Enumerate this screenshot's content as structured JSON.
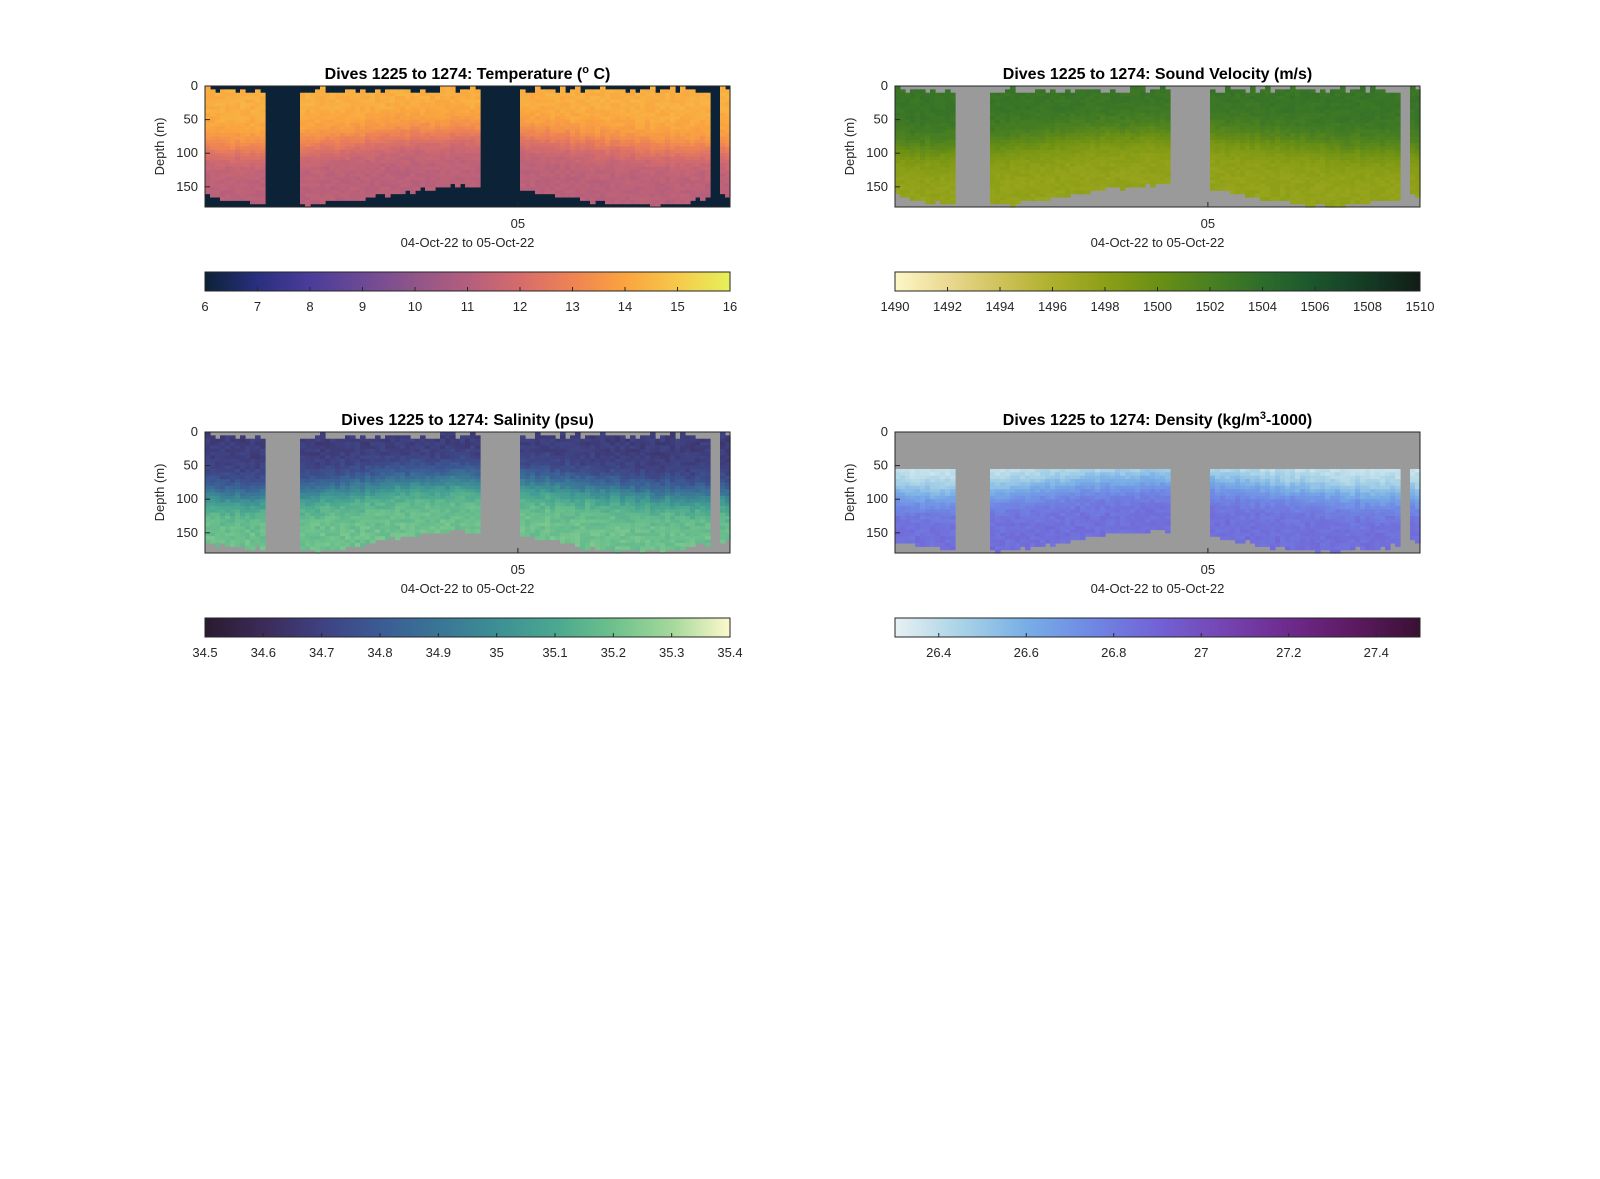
{
  "chart_data": [
    {
      "type": "heatmap",
      "title": "Dives 1225 to 1274: Temperature",
      "title_unit": "C",
      "title_unit_prefix": "(",
      "title_unit_sup": "o",
      "title_unit_suffix": ")",
      "ylabel": "Depth (m)",
      "xlabel": "04-Oct-22 to 05-Oct-22",
      "x_tick": "05",
      "y_ticks": [
        "0",
        "50",
        "100",
        "150"
      ],
      "ylim": [
        180,
        0
      ],
      "nodata_color": "#0c2237",
      "colorbar": {
        "ticks": [
          "6",
          "7",
          "8",
          "9",
          "10",
          "11",
          "12",
          "13",
          "14",
          "15",
          "16"
        ],
        "range": [
          6,
          16
        ],
        "colors": [
          "#0c2237",
          "#2a2f7f",
          "#4a3d99",
          "#6d4995",
          "#905589",
          "#b35e7e",
          "#d56c6c",
          "#ee8354",
          "#faa43f",
          "#f6c94a",
          "#e6f15a"
        ]
      },
      "gaps": [
        [
          0.118,
          0.18
        ],
        [
          0.52,
          0.598
        ],
        [
          0.96,
          0.98
        ]
      ],
      "surface_temp": 14.3,
      "bottom_temp": 11.2
    },
    {
      "type": "heatmap",
      "title": "Dives 1225 to 1274: Sound Velocity (m/s)",
      "ylabel": "Depth (m)",
      "xlabel": "04-Oct-22 to 05-Oct-22",
      "x_tick": "05",
      "y_ticks": [
        "0",
        "50",
        "100",
        "150"
      ],
      "ylim": [
        180,
        0
      ],
      "nodata_color": "#9a9a9a",
      "colorbar": {
        "ticks": [
          "1490",
          "1492",
          "1494",
          "1496",
          "1498",
          "1500",
          "1502",
          "1504",
          "1506",
          "1508",
          "1510"
        ],
        "range": [
          1490,
          1510
        ],
        "colors": [
          "#fdf7c8",
          "#ead991",
          "#cfc25a",
          "#aeb02c",
          "#8c9f16",
          "#6b9014",
          "#4a8021",
          "#2d6d2b",
          "#1b552c",
          "#143b24",
          "#111c16"
        ]
      },
      "gaps": [
        [
          0.118,
          0.18
        ],
        [
          0.52,
          0.598
        ],
        [
          0.96,
          0.98
        ]
      ],
      "surface_val": 1503.2,
      "bottom_val": 1497.6
    },
    {
      "type": "heatmap",
      "title": "Dives 1225 to 1274: Salinity (psu)",
      "ylabel": "Depth (m)",
      "xlabel": "04-Oct-22 to 05-Oct-22",
      "x_tick": "05",
      "y_ticks": [
        "0",
        "50",
        "100",
        "150"
      ],
      "ylim": [
        180,
        0
      ],
      "nodata_color": "#9a9a9a",
      "colorbar": {
        "ticks": [
          "34.5",
          "34.6",
          "34.7",
          "34.8",
          "34.9",
          "35",
          "35.1",
          "35.2",
          "35.3",
          "35.4"
        ],
        "range": [
          34.5,
          35.4
        ],
        "colors": [
          "#2a1a2f",
          "#3b2b58",
          "#3f4182",
          "#3b5b95",
          "#3a7596",
          "#3d8f94",
          "#4aa890",
          "#6ec18c",
          "#a4d89a",
          "#fdf9cc"
        ]
      },
      "gaps": [
        [
          0.118,
          0.18
        ],
        [
          0.52,
          0.598
        ],
        [
          0.96,
          0.98
        ]
      ],
      "surface_val": 34.68,
      "bottom_val": 35.2
    },
    {
      "type": "heatmap",
      "title": "Dives 1225 to 1274: Density",
      "title_unit_prefix": "(kg/m",
      "title_unit_sup": "3",
      "title_unit_suffix": "-1000)",
      "ylabel": "Depth (m)",
      "xlabel": "04-Oct-22 to 05-Oct-22",
      "x_tick": "05",
      "y_ticks": [
        "0",
        "50",
        "100",
        "150"
      ],
      "ylim": [
        180,
        0
      ],
      "nodata_color": "#9a9a9a",
      "colorbar": {
        "ticks": [
          "26.4",
          "26.6",
          "26.8",
          "27",
          "27.2",
          "27.4"
        ],
        "range": [
          26.3,
          27.5
        ],
        "colors": [
          "#e7f1f2",
          "#a9d3e6",
          "#78aee6",
          "#6f88e4",
          "#7262d6",
          "#7445b3",
          "#6e2a8c",
          "#5c1a61",
          "#3a1033"
        ]
      },
      "gaps": [
        [
          0.118,
          0.18
        ],
        [
          0.52,
          0.598
        ],
        [
          0.96,
          0.98
        ]
      ],
      "surface_val": 26.35,
      "bottom_val": 26.85
    }
  ]
}
